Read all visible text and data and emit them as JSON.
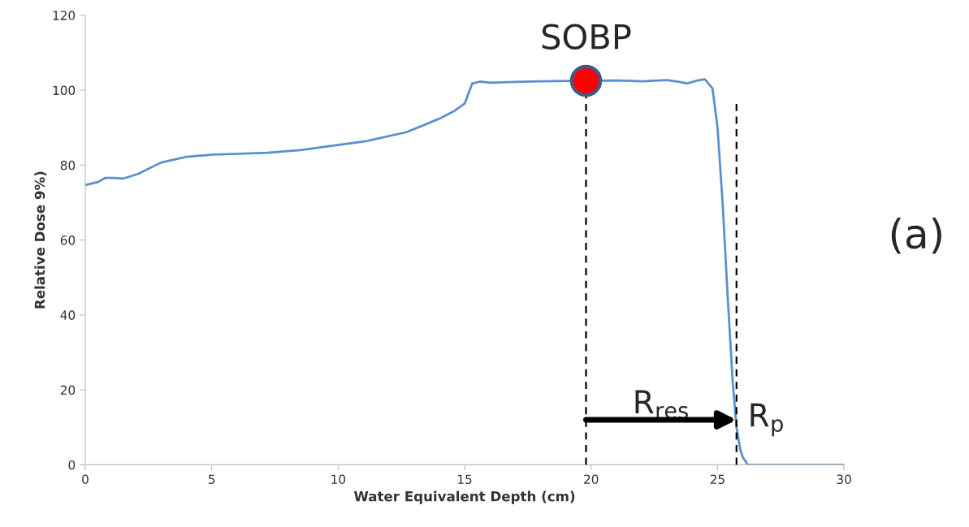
{
  "chart_data": {
    "type": "line",
    "xlabel": "Water Equivalent Depth (cm)",
    "ylabel": "Relative Dose 9%)",
    "xlim": [
      0,
      30
    ],
    "ylim": [
      0,
      120
    ],
    "xticks": [
      0,
      5,
      10,
      15,
      20,
      25,
      30
    ],
    "yticks": [
      0,
      20,
      40,
      60,
      80,
      100,
      120
    ],
    "grid": false,
    "legend": false,
    "series": [
      {
        "color": "#5b8fcf",
        "x": [
          0,
          0.2,
          0.5,
          0.8,
          1.1,
          1.5,
          2.1,
          3.0,
          4.0,
          5.0,
          5.6,
          7.2,
          8.5,
          9.5,
          11.1,
          12.7,
          14.0,
          14.6,
          15.0,
          15.3,
          15.6,
          16.0,
          17.0,
          18.0,
          19.0,
          21.0,
          22.0,
          23.0,
          23.5,
          23.8,
          24.2,
          24.5,
          24.8,
          25.0,
          25.2,
          25.4,
          25.6,
          25.75,
          25.9,
          26.0,
          26.2,
          27.0,
          30.0
        ],
        "values": [
          74.7,
          75.0,
          75.5,
          76.6,
          76.6,
          76.4,
          77.7,
          80.7,
          82.2,
          82.8,
          82.9,
          83.3,
          84.0,
          84.9,
          86.4,
          88.8,
          92.4,
          94.5,
          96.4,
          101.8,
          102.3,
          102.0,
          102.2,
          102.4,
          102.5,
          102.6,
          102.4,
          102.7,
          102.2,
          101.8,
          102.6,
          102.9,
          100.5,
          90,
          70,
          45,
          22,
          10,
          4,
          2,
          0,
          0,
          0
        ]
      },
      {
        "type": "scatter",
        "color": "#ff0000",
        "x": [
          19.8
        ],
        "values": [
          102.5
        ]
      }
    ],
    "ref_lines": [
      {
        "axis": "x",
        "value": 19.8,
        "line_style": "dashed",
        "color": "#000000"
      },
      {
        "axis": "x",
        "value": 25.75,
        "line_style": "dashed",
        "color": "#000000"
      }
    ],
    "annotations": [
      {
        "text": "SOBP",
        "x": 19.8,
        "y": 102.5
      },
      "R$_{res}$",
      {
        "text": "R$_{p}$",
        "x": 25.75,
        "y": 12
      },
      "(a)"
    ]
  }
}
